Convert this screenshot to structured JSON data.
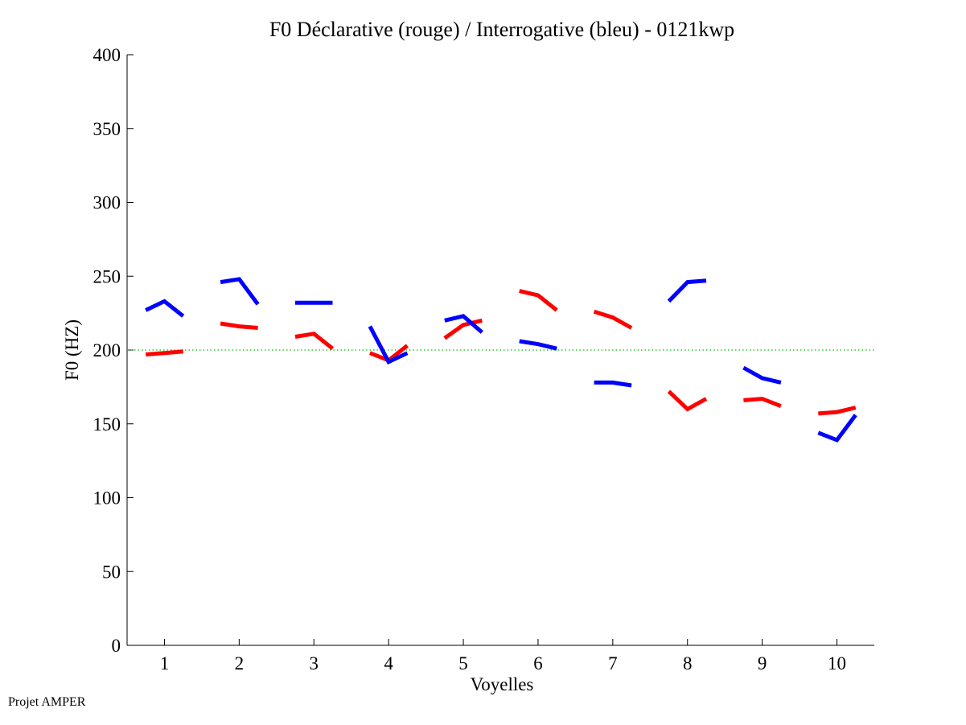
{
  "footer": "Projet AMPER",
  "chart_data": {
    "type": "line",
    "title": "F0 Déclarative (rouge) / Interrogative (bleu) - 0121kwp",
    "xlabel": "Voyelles",
    "ylabel": "F0 (HZ)",
    "xlim": [
      0.5,
      10.5
    ],
    "ylim": [
      0,
      400
    ],
    "xticks": [
      1,
      2,
      3,
      4,
      5,
      6,
      7,
      8,
      9,
      10
    ],
    "yticks": [
      0,
      50,
      100,
      150,
      200,
      250,
      300,
      350,
      400
    ],
    "grid": false,
    "reference_line": {
      "y": 200,
      "color": "#00c000",
      "style": "dotted"
    },
    "series": [
      {
        "color": "#ff0000",
        "segments": [
          {
            "x": [
              0.75,
              1.0,
              1.25
            ],
            "y": [
              197,
              198,
              199
            ]
          },
          {
            "x": [
              1.75,
              2.0,
              2.25
            ],
            "y": [
              218,
              216,
              215
            ]
          },
          {
            "x": [
              2.75,
              3.0,
              3.25
            ],
            "y": [
              209,
              211,
              201
            ]
          },
          {
            "x": [
              3.75,
              4.0,
              4.25
            ],
            "y": [
              198,
              193,
              203
            ]
          },
          {
            "x": [
              4.75,
              5.0,
              5.25
            ],
            "y": [
              208,
              217,
              220
            ]
          },
          {
            "x": [
              5.75,
              6.0,
              6.25
            ],
            "y": [
              240,
              237,
              227
            ]
          },
          {
            "x": [
              6.75,
              7.0,
              7.25
            ],
            "y": [
              226,
              222,
              215
            ]
          },
          {
            "x": [
              7.75,
              8.0,
              8.25
            ],
            "y": [
              172,
              160,
              167
            ]
          },
          {
            "x": [
              8.75,
              9.0,
              9.25
            ],
            "y": [
              166,
              167,
              162
            ]
          },
          {
            "x": [
              9.75,
              10.0,
              10.25
            ],
            "y": [
              157,
              158,
              161
            ]
          }
        ]
      },
      {
        "color": "#0000ff",
        "segments": [
          {
            "x": [
              0.75,
              1.0,
              1.25
            ],
            "y": [
              227,
              233,
              223
            ]
          },
          {
            "x": [
              1.75,
              2.0,
              2.25
            ],
            "y": [
              246,
              248,
              231
            ]
          },
          {
            "x": [
              2.75,
              3.0,
              3.25
            ],
            "y": [
              232,
              232,
              232
            ]
          },
          {
            "x": [
              3.75,
              4.0,
              4.25
            ],
            "y": [
              216,
              192,
              198
            ]
          },
          {
            "x": [
              4.75,
              5.0,
              5.25
            ],
            "y": [
              220,
              223,
              212
            ]
          },
          {
            "x": [
              5.75,
              6.0,
              6.25
            ],
            "y": [
              206,
              204,
              201
            ]
          },
          {
            "x": [
              6.75,
              7.0,
              7.25
            ],
            "y": [
              178,
              178,
              176
            ]
          },
          {
            "x": [
              7.75,
              8.0,
              8.25
            ],
            "y": [
              233,
              246,
              247
            ]
          },
          {
            "x": [
              8.75,
              9.0,
              9.25
            ],
            "y": [
              188,
              181,
              178
            ]
          },
          {
            "x": [
              9.75,
              10.0,
              10.25
            ],
            "y": [
              144,
              139,
              156
            ]
          }
        ]
      }
    ]
  }
}
